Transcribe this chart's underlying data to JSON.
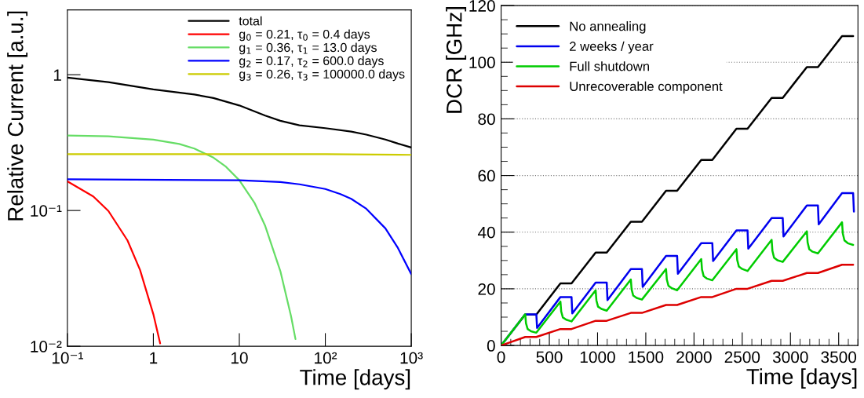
{
  "chart_data": [
    {
      "type": "line",
      "xlabel": "Time [days]",
      "ylabel": "Relative Current [a.u.]",
      "log": "xy",
      "legend": "top right",
      "xlim": [
        0.1,
        1000
      ],
      "ylim": [
        0.01,
        3
      ],
      "xticks": [
        {
          "value": 0.1,
          "label": "10⁻¹"
        },
        1,
        10,
        {
          "value": 100,
          "label": "10²"
        },
        {
          "value": 1000,
          "label": "10³"
        }
      ],
      "yticks": [
        {
          "value": 0.01,
          "label": "10⁻²"
        },
        {
          "value": 0.1,
          "label": "10⁻¹"
        },
        1
      ],
      "series": [
        {
          "name": "total",
          "color": "#000000",
          "x": [
            0.1,
            0.3,
            1,
            3,
            5,
            10,
            20,
            30,
            50,
            100,
            200,
            300,
            500,
            700,
            1000
          ],
          "values": [
            0.951,
            0.881,
            0.78,
            0.715,
            0.674,
            0.594,
            0.5,
            0.458,
            0.424,
            0.404,
            0.381,
            0.362,
            0.333,
            0.311,
            0.291
          ]
        },
        {
          "name": "g$_{0}$ = 0.21, τ$_{0}$ = 0.4 days",
          "color": "#ff0000",
          "x": [
            0.1,
            0.2,
            0.3,
            0.5,
            0.7,
            1,
            1.2
          ],
          "values": [
            0.164,
            0.127,
            0.0992,
            0.0602,
            0.0365,
            0.0172,
            0.0105
          ]
        },
        {
          "name": "g$_{1}$ = 0.36, τ$_{1}$ = 13.0 days",
          "color": "#66dd66",
          "x": [
            0.1,
            0.3,
            1,
            2,
            3,
            5,
            7,
            10,
            15,
            20,
            30,
            40,
            45
          ],
          "values": [
            0.357,
            0.352,
            0.333,
            0.309,
            0.286,
            0.245,
            0.21,
            0.167,
            0.114,
            0.077,
            0.0358,
            0.0166,
            0.0113
          ]
        },
        {
          "name": "g$_{2}$ = 0.17, τ$_{2}$ = 600.0 days",
          "color": "#0000ff",
          "x": [
            0.1,
            10,
            30,
            50,
            100,
            150,
            200,
            300,
            500,
            700,
            1000
          ],
          "values": [
            0.17,
            0.167,
            0.162,
            0.156,
            0.144,
            0.132,
            0.122,
            0.103,
            0.0739,
            0.0529,
            0.034
          ]
        },
        {
          "name": "g$_{3}$ = 0.26, τ$_{3}$ = 100000.0 days",
          "color": "#cccc00",
          "x": [
            0.1,
            10,
            100,
            1000
          ],
          "values": [
            0.26,
            0.26,
            0.26,
            0.257
          ]
        }
      ]
    },
    {
      "type": "line",
      "xlabel": "Time [days]",
      "ylabel": "DCR [GHz]",
      "grid": "y",
      "legend": "top left",
      "xlim": [
        0,
        3700
      ],
      "ylim": [
        0,
        120
      ],
      "xticks": [
        0,
        500,
        1000,
        1500,
        2000,
        2500,
        3000,
        3500
      ],
      "yticks": [
        0,
        20,
        40,
        60,
        80,
        100,
        120
      ],
      "series": [
        {
          "name": "No annealing",
          "color": "#000000",
          "x": [
            0,
            250,
            365,
            615,
            730,
            980,
            1095,
            1345,
            1460,
            1710,
            1825,
            2075,
            2190,
            2440,
            2555,
            2805,
            2920,
            3170,
            3285,
            3535,
            3650
          ],
          "values": [
            0,
            10.9,
            10.9,
            21.9,
            21.9,
            32.8,
            32.8,
            43.7,
            43.7,
            54.6,
            54.6,
            65.5,
            65.5,
            76.5,
            76.5,
            87.4,
            87.4,
            98.3,
            98.3,
            109.2,
            109.2
          ]
        },
        {
          "name": "2 weeks / year",
          "color": "#0000ee",
          "x": [
            0,
            250,
            365,
            373,
            615,
            730,
            738,
            980,
            1095,
            1103,
            1345,
            1460,
            1468,
            1710,
            1825,
            1833,
            2075,
            2190,
            2198,
            2440,
            2555,
            2563,
            2805,
            2920,
            2928,
            3170,
            3285,
            3293,
            3535,
            3650,
            3658
          ],
          "values": [
            0,
            11,
            11,
            6.2,
            17.1,
            17.1,
            11.3,
            22.2,
            22.2,
            16,
            27,
            27,
            20.7,
            31.6,
            31.6,
            25.3,
            36.1,
            36.1,
            29.8,
            40.6,
            40.6,
            34.2,
            45,
            45,
            38.5,
            49.4,
            49.4,
            42.8,
            53.8,
            53.8,
            47.3
          ]
        },
        {
          "name": "Full shutdown",
          "color": "#00cc00",
          "x": [
            0,
            250,
            258,
            275,
            310,
            365,
            615,
            623,
            640,
            675,
            730,
            980,
            988,
            1005,
            1040,
            1095,
            1345,
            1353,
            1370,
            1405,
            1460,
            1710,
            1718,
            1735,
            1770,
            1825,
            2075,
            2083,
            2100,
            2135,
            2190,
            2440,
            2448,
            2465,
            2500,
            2555,
            2805,
            2813,
            2830,
            2865,
            2920,
            3170,
            3178,
            3195,
            3230,
            3285,
            3535,
            3543,
            3560,
            3595,
            3650
          ],
          "values": [
            0,
            11,
            7.8,
            5.8,
            5.0,
            4.5,
            15.5,
            12.0,
            9.9,
            9.1,
            8.5,
            19.5,
            15.9,
            13.7,
            12.9,
            12.3,
            23.3,
            19.8,
            17.6,
            16.8,
            16.2,
            27,
            23.3,
            21.1,
            20.2,
            19.5,
            30.5,
            26.8,
            24.5,
            23.6,
            23,
            34,
            30.2,
            27.9,
            27,
            26.3,
            37.3,
            33.4,
            31,
            30.1,
            29.5,
            40.3,
            36.4,
            34,
            33.1,
            32.5,
            43.5,
            39.5,
            37.1,
            36.1,
            35.5
          ]
        },
        {
          "name": "Unrecoverable component",
          "color": "#dd0000",
          "x": [
            0,
            250,
            365,
            615,
            730,
            980,
            1095,
            1345,
            1460,
            1710,
            1825,
            2075,
            2190,
            2440,
            2555,
            2805,
            2920,
            3170,
            3285,
            3535,
            3650
          ],
          "values": [
            0,
            3,
            3,
            5.8,
            5.8,
            8.7,
            8.7,
            11.5,
            11.5,
            14.3,
            14.3,
            17.1,
            17.1,
            20,
            20,
            22.8,
            22.8,
            25.6,
            25.6,
            28.5,
            28.5
          ]
        }
      ]
    }
  ]
}
